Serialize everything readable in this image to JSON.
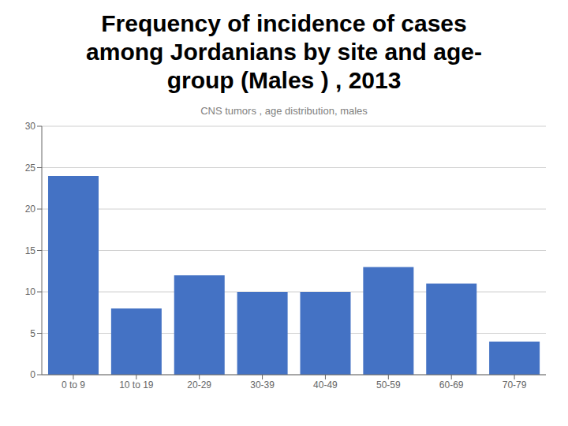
{
  "chart_data": {
    "type": "bar",
    "title": "Frequency of incidence of cases\namong Jordanians by site and age-\ngroup (Males ) , 2013",
    "subtitle": "CNS tumors , age distribution, males",
    "categories": [
      "0 to 9",
      "10 to 19",
      "20-29",
      "30-39",
      "40-49",
      "50-59",
      "60-69",
      "70-79"
    ],
    "values": [
      24,
      8,
      12,
      10,
      10,
      13,
      11,
      4
    ],
    "color": "#4472C4",
    "ylim": [
      0,
      30
    ],
    "yticks": [
      0,
      5,
      10,
      15,
      20,
      25,
      30
    ],
    "grid": true
  }
}
